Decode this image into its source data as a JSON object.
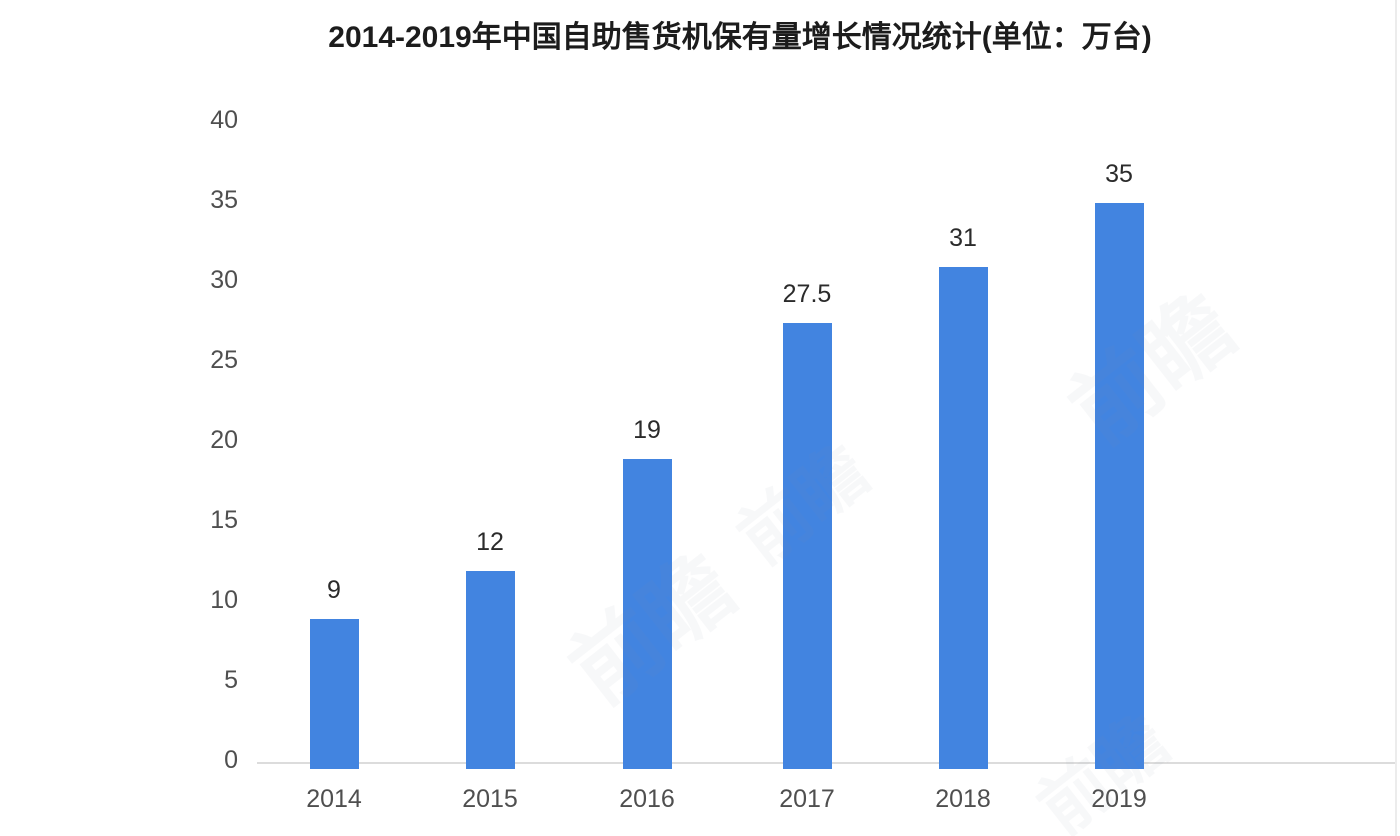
{
  "chart_data": {
    "type": "bar",
    "title": "2014-2019年中国自助售货机保有量增长情况统计(单位：万台)",
    "unit_label": "万台",
    "categories": [
      "2014",
      "2015",
      "2016",
      "2017",
      "2018",
      "2019"
    ],
    "values": [
      9,
      12,
      19,
      27.5,
      31,
      35
    ],
    "value_labels": [
      "9",
      "12",
      "19",
      "27.5",
      "31",
      "35"
    ],
    "y_ticks": [
      0,
      5,
      10,
      15,
      20,
      25,
      30,
      35,
      40
    ],
    "y_tick_labels": [
      "0",
      "5",
      "10",
      "15",
      "20",
      "25",
      "30",
      "35",
      "40"
    ],
    "ylim": [
      0,
      40
    ],
    "xlabel": "",
    "ylabel": "",
    "grid": false,
    "legend": "none",
    "bar_color": "#4284E0",
    "axis_line_color": "#dcdcdc"
  },
  "watermark": {
    "text": "前瞻"
  }
}
